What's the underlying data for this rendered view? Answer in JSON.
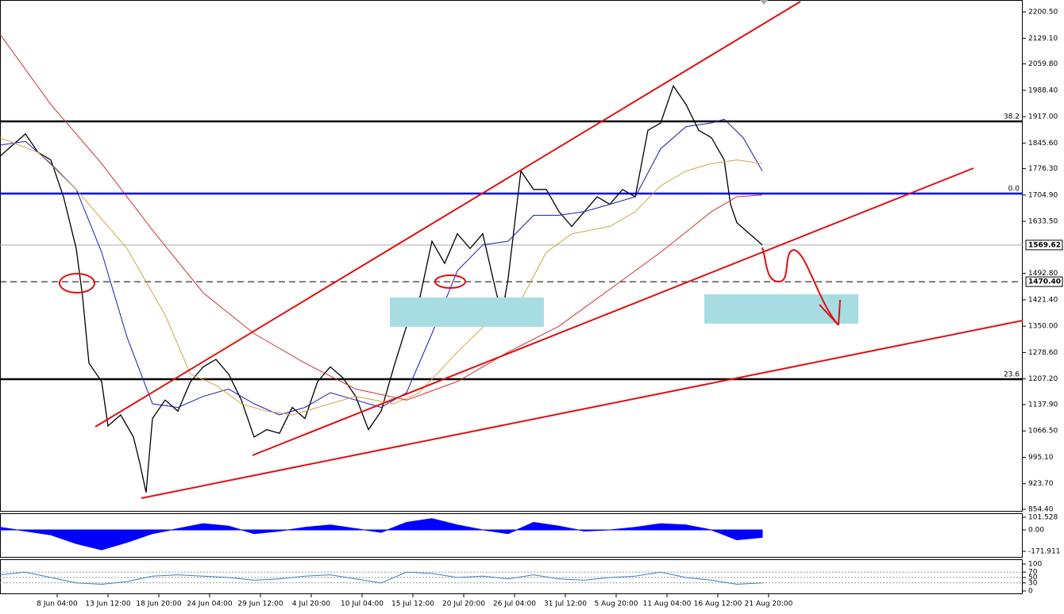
{
  "chart_data": [
    {
      "type": "line",
      "xlim": [
        0,
        322
      ],
      "ylim": [
        848.0,
        2232.7
      ],
      "grid": false,
      "yticks": [
        {
          "value": 2200.5,
          "label": "2200.50"
        },
        {
          "value": 2129.1,
          "label": "2129.10"
        },
        {
          "value": 2059.8,
          "label": "2059.80"
        },
        {
          "value": 1988.4,
          "label": "1988.40"
        },
        {
          "value": 1917.0,
          "label": "1917.00"
        },
        {
          "value": 1845.6,
          "label": "1845.60"
        },
        {
          "value": 1776.3,
          "label": "1776.30"
        },
        {
          "value": 1704.9,
          "label": "1704.90"
        },
        {
          "value": 1633.5,
          "label": "1633.50"
        },
        {
          "value": 1492.8,
          "label": "1492.80"
        },
        {
          "value": 1421.4,
          "label": "1421.40"
        },
        {
          "value": 1350.0,
          "label": "1350.00"
        },
        {
          "value": 1278.6,
          "label": "1278.60"
        },
        {
          "value": 1207.2,
          "label": "1207.20"
        },
        {
          "value": 1137.9,
          "label": "1137.90"
        },
        {
          "value": 1066.5,
          "label": "1066.50"
        },
        {
          "value": 995.1,
          "label": "995.10"
        },
        {
          "value": 923.7,
          "label": "923.70"
        },
        {
          "value": 854.4,
          "label": "854.40"
        }
      ],
      "xticks": [
        {
          "value": 18,
          "label": "8 Jun 04:00"
        },
        {
          "value": 34,
          "label": "13 Jun 12:00"
        },
        {
          "value": 50,
          "label": "18 Jun 20:00"
        },
        {
          "value": 66,
          "label": "24 Jun 04:00"
        },
        {
          "value": 82,
          "label": "29 Jun 12:00"
        },
        {
          "value": 98,
          "label": "4 Jul 20:00"
        },
        {
          "value": 114,
          "label": "10 Jul 04:00"
        },
        {
          "value": 130,
          "label": "15 Jul 12:00"
        },
        {
          "value": 146,
          "label": "20 Jul 20:00"
        },
        {
          "value": 162,
          "label": "26 Jul 04:00"
        },
        {
          "value": 178,
          "label": "31 Jul 12:00"
        },
        {
          "value": 194,
          "label": "5 Aug 20:00"
        },
        {
          "value": 210,
          "label": "11 Aug 04:00"
        },
        {
          "value": 226,
          "label": "16 Aug 12:00"
        },
        {
          "value": 242,
          "label": "21 Aug 20:00"
        }
      ],
      "series": [
        {
          "color": "#000000",
          "x": [
            0,
            4,
            8,
            12,
            16,
            20,
            24,
            26,
            28,
            32,
            34,
            38,
            42,
            44,
            46,
            48,
            52,
            56,
            60,
            64,
            68,
            72,
            76,
            80,
            84,
            88,
            92,
            96,
            100,
            104,
            108,
            112,
            116,
            120,
            124,
            128,
            132,
            136,
            140,
            144,
            148,
            152,
            156,
            158,
            160,
            164,
            168,
            172,
            176,
            180,
            184,
            188,
            192,
            196,
            200,
            204,
            208,
            212,
            216,
            220,
            224,
            228,
            230,
            232,
            236,
            240
          ],
          "values": [
            1810,
            1840,
            1870,
            1820,
            1800,
            1700,
            1560,
            1430,
            1250,
            1200,
            1080,
            1110,
            1050,
            980,
            900,
            1100,
            1150,
            1120,
            1200,
            1240,
            1260,
            1220,
            1150,
            1050,
            1070,
            1060,
            1130,
            1100,
            1200,
            1240,
            1210,
            1160,
            1070,
            1120,
            1240,
            1350,
            1420,
            1580,
            1520,
            1600,
            1560,
            1600,
            1450,
            1380,
            1480,
            1770,
            1720,
            1720,
            1660,
            1620,
            1660,
            1700,
            1680,
            1720,
            1700,
            1880,
            1900,
            2000,
            1950,
            1880,
            1860,
            1800,
            1680,
            1630,
            1600,
            1570
          ]
        },
        {
          "color": "#1a1ab8",
          "x": [
            0,
            8,
            16,
            24,
            32,
            40,
            48,
            56,
            64,
            72,
            80,
            88,
            96,
            104,
            112,
            120,
            128,
            136,
            144,
            152,
            160,
            168,
            176,
            184,
            192,
            200,
            208,
            216,
            224,
            228,
            234,
            240
          ],
          "values": [
            1840,
            1850,
            1790,
            1720,
            1550,
            1320,
            1140,
            1130,
            1160,
            1180,
            1140,
            1110,
            1130,
            1170,
            1150,
            1130,
            1170,
            1330,
            1500,
            1570,
            1580,
            1650,
            1650,
            1660,
            1680,
            1700,
            1830,
            1890,
            1900,
            1910,
            1860,
            1770
          ]
        },
        {
          "color": "#d4a444",
          "x": [
            0,
            12,
            24,
            40,
            52,
            60,
            68,
            76,
            84,
            92,
            100,
            112,
            124,
            132,
            144,
            156,
            164,
            172,
            180,
            192,
            200,
            208,
            216,
            224,
            232,
            240
          ],
          "values": [
            1860,
            1820,
            1720,
            1560,
            1380,
            1220,
            1190,
            1140,
            1120,
            1110,
            1130,
            1160,
            1140,
            1170,
            1280,
            1380,
            1420,
            1550,
            1600,
            1620,
            1660,
            1730,
            1770,
            1790,
            1800,
            1790
          ]
        },
        {
          "color": "#d03030",
          "x": [
            0,
            16,
            32,
            48,
            64,
            80,
            96,
            112,
            128,
            144,
            160,
            176,
            192,
            208,
            224,
            232,
            240
          ],
          "values": [
            2140,
            1950,
            1790,
            1610,
            1440,
            1330,
            1250,
            1180,
            1150,
            1200,
            1280,
            1350,
            1450,
            1550,
            1660,
            1700,
            1705
          ]
        }
      ],
      "levels": [
        {
          "value": 1904.2,
          "label": "38.2",
          "color": "#000000"
        },
        {
          "value": 1708.8,
          "label": "0.0",
          "color": "#0000ee"
        },
        {
          "value": 1206.4,
          "label": "23.6",
          "color": "#000000"
        }
      ],
      "markers": [
        {
          "value": 1569.62,
          "label": "1569.62",
          "style": "solid"
        },
        {
          "value": 1470.4,
          "label": "1470.40",
          "style": "dashed"
        }
      ]
    },
    {
      "type": "area",
      "xlim": [
        0,
        322
      ],
      "ylim": [
        -216.4,
        133.3
      ],
      "yticks": [
        {
          "value": 101.528,
          "label": "101.528"
        },
        {
          "value": 0,
          "label": "0.00"
        },
        {
          "value": -171.911,
          "label": "-171.911"
        }
      ],
      "series": [
        {
          "color": "#0000ff",
          "x": [
            0,
            8,
            16,
            24,
            32,
            40,
            48,
            56,
            64,
            72,
            80,
            88,
            96,
            104,
            112,
            120,
            128,
            136,
            144,
            152,
            160,
            168,
            176,
            184,
            192,
            200,
            208,
            216,
            224,
            232,
            240
          ],
          "values": [
            20,
            -10,
            -40,
            -110,
            -160,
            -100,
            -30,
            10,
            50,
            30,
            -30,
            -10,
            20,
            40,
            10,
            -20,
            60,
            90,
            40,
            0,
            -30,
            60,
            30,
            -10,
            0,
            20,
            50,
            40,
            0,
            -80,
            -60
          ]
        }
      ]
    },
    {
      "type": "line",
      "xlim": [
        0,
        322
      ],
      "ylim": [
        -8.8,
        117.6
      ],
      "yticks": [
        100,
        70,
        50,
        30,
        0
      ],
      "levels": [
        {
          "value": 70,
          "color": "#999999"
        },
        {
          "value": 50,
          "color": "#999999"
        },
        {
          "value": 30,
          "color": "#999999"
        }
      ],
      "series": [
        {
          "color": "#3a7fc8",
          "x": [
            0,
            8,
            16,
            24,
            32,
            40,
            48,
            56,
            64,
            72,
            80,
            88,
            96,
            104,
            112,
            120,
            128,
            136,
            144,
            152,
            160,
            168,
            176,
            184,
            192,
            200,
            208,
            216,
            224,
            232,
            240
          ],
          "values": [
            60,
            70,
            50,
            30,
            25,
            35,
            55,
            60,
            55,
            50,
            40,
            45,
            55,
            60,
            45,
            30,
            70,
            65,
            50,
            55,
            45,
            60,
            45,
            40,
            50,
            55,
            70,
            50,
            40,
            25,
            30
          ]
        }
      ]
    }
  ]
}
